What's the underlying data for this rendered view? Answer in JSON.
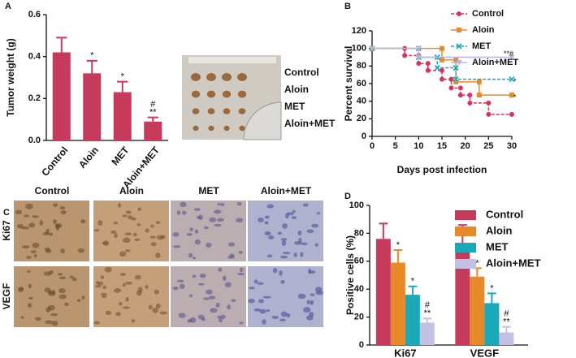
{
  "chart_data": [
    {
      "type": "bar",
      "panel_label": "A",
      "y_label": "Tumor weight (g)",
      "categories": [
        "Control",
        "Aloin",
        "MET",
        "Aloin+MET"
      ],
      "values": [
        0.42,
        0.32,
        0.23,
        0.09
      ],
      "errors": [
        0.07,
        0.06,
        0.05,
        0.02
      ],
      "annotations": [
        null,
        [
          "*"
        ],
        [
          "*"
        ],
        [
          "#",
          "**"
        ]
      ],
      "color": "#c63a5c",
      "ylim": [
        0,
        0.6
      ],
      "yticks": [
        {
          "value": 0,
          "label": "0.0"
        },
        0.2,
        0.4,
        0.6
      ]
    },
    {
      "type": "line",
      "panel_label": "B",
      "y_label": "Percent survival",
      "x_label": "Days post infection",
      "series": [
        {
          "name": "Control",
          "color": "#d2365e",
          "dash": true,
          "marker": "circle",
          "x": [
            0,
            7,
            7,
            10,
            10,
            12,
            12,
            15,
            15,
            17,
            17,
            19,
            19,
            21,
            21,
            25,
            25,
            30
          ],
          "values": [
            100,
            100,
            92,
            92,
            83,
            83,
            75,
            75,
            65,
            65,
            55,
            55,
            47,
            47,
            38,
            38,
            25,
            25
          ]
        },
        {
          "name": "Aloin",
          "color": "#e8892a",
          "dash": false,
          "marker": "square",
          "x": [
            0,
            15,
            15,
            18,
            18,
            23,
            23,
            30
          ],
          "values": [
            100,
            100,
            87,
            87,
            62,
            62,
            47,
            47
          ],
          "annotation": "*"
        },
        {
          "name": "MET",
          "color": "#1aa9b8",
          "dash": true,
          "marker": "cross",
          "x": [
            0,
            10,
            10,
            14,
            14,
            18,
            18,
            30
          ],
          "values": [
            100,
            100,
            90,
            90,
            78,
            78,
            65,
            65
          ],
          "annotation": "*"
        },
        {
          "name": "Aloin+MET",
          "color": "#b8b4e0",
          "dash": false,
          "marker": "triangle",
          "x": [
            0,
            10,
            10,
            30
          ],
          "values": [
            100,
            100,
            90,
            90
          ],
          "annotation": "**#"
        }
      ],
      "xlim": [
        0,
        30
      ],
      "xticks": [
        0,
        5,
        10,
        15,
        20,
        25,
        30
      ],
      "ylim": [
        0,
        120
      ],
      "yticks": [
        0,
        20,
        40,
        60,
        80,
        100,
        120
      ]
    },
    {
      "type": "bar",
      "panel_label": "D",
      "y_label": "Positive cells (%)",
      "categories": [
        "Ki67",
        "VEGF"
      ],
      "series": [
        {
          "name": "Control",
          "color": "#c63a5c",
          "values": [
            76,
            72
          ],
          "errors": [
            11,
            14
          ],
          "annotations": [
            null,
            null
          ]
        },
        {
          "name": "Aloin",
          "color": "#e8892a",
          "values": [
            59,
            49
          ],
          "errors": [
            9,
            6
          ],
          "annotations": [
            [
              "*"
            ],
            [
              "*"
            ]
          ]
        },
        {
          "name": "MET",
          "color": "#1aa9b8",
          "values": [
            36,
            30
          ],
          "errors": [
            6,
            7
          ],
          "annotations": [
            [
              "*"
            ],
            [
              "*"
            ]
          ]
        },
        {
          "name": "Aloin+MET",
          "color": "#c4c2e4",
          "values": [
            16,
            9
          ],
          "errors": [
            3,
            4
          ],
          "annotations": [
            [
              "#",
              "**"
            ],
            [
              "#",
              "**"
            ]
          ]
        }
      ],
      "ylim": [
        0,
        100
      ],
      "yticks": [
        0,
        20,
        40,
        60,
        80,
        100
      ]
    }
  ],
  "tumor_photo": {
    "labels": [
      "Control",
      "Aloin",
      "MET",
      "Aloin+MET"
    ]
  },
  "ihc": {
    "panel_label": "C",
    "columns": [
      "Control",
      "Aloin",
      "MET",
      "Aloin+MET"
    ],
    "rows": [
      "Ki67",
      "VEGF"
    ]
  }
}
